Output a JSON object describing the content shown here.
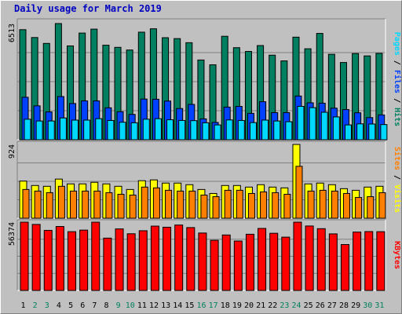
{
  "title": "Daily usage for March 2019",
  "colors": {
    "pages": "#00d8ff",
    "files": "#0040ff",
    "hits": "#008060",
    "visits": "#ffff00",
    "sites": "#ff8000",
    "kbytes": "#ff0000",
    "weekday": "#000000",
    "weekend": "#00805c"
  },
  "chart_data": [
    {
      "type": "bar",
      "name": "hits-files-pages",
      "max_label": "6513",
      "ylim": [
        0,
        6513
      ],
      "legend": [
        "Pages",
        "Files",
        "Hits"
      ],
      "categories": [
        "1",
        "2",
        "3",
        "4",
        "5",
        "6",
        "7",
        "8",
        "9",
        "10",
        "11",
        "12",
        "13",
        "14",
        "15",
        "16",
        "17",
        "18",
        "19",
        "20",
        "21",
        "22",
        "23",
        "24",
        "25",
        "26",
        "27",
        "28",
        "29",
        "30",
        "31"
      ],
      "series": [
        {
          "name": "Hits",
          "values": [
            6170,
            5730,
            5400,
            6513,
            5260,
            5980,
            6200,
            5300,
            5180,
            5030,
            6030,
            6220,
            5720,
            5670,
            5440,
            4470,
            4200,
            5800,
            5160,
            4950,
            5280,
            4740,
            4420,
            5750,
            5100,
            5960,
            4790,
            4330,
            4830,
            4700,
            4840
          ]
        },
        {
          "name": "Files",
          "values": [
            2380,
            1900,
            1560,
            2420,
            2030,
            2180,
            2180,
            1790,
            1570,
            1420,
            2280,
            2270,
            2170,
            1750,
            1980,
            1170,
            970,
            1830,
            1870,
            1480,
            2130,
            1520,
            1520,
            2450,
            2070,
            2050,
            1770,
            1690,
            1510,
            1240,
            1390
          ]
        },
        {
          "name": "Pages",
          "values": [
            1150,
            1050,
            1050,
            1220,
            1100,
            1100,
            1180,
            1080,
            980,
            950,
            1150,
            1180,
            1120,
            1080,
            1070,
            950,
            830,
            1110,
            1080,
            960,
            1100,
            1050,
            1010,
            1870,
            1800,
            1540,
            1280,
            830,
            890,
            880,
            850
          ]
        }
      ]
    },
    {
      "type": "bar",
      "name": "visits-sites",
      "max_label": "924",
      "ylim": [
        0,
        924
      ],
      "legend": [
        "Sites",
        "Visits"
      ],
      "categories": [
        "1",
        "2",
        "3",
        "4",
        "5",
        "6",
        "7",
        "8",
        "9",
        "10",
        "11",
        "12",
        "13",
        "14",
        "15",
        "16",
        "17",
        "18",
        "19",
        "20",
        "21",
        "22",
        "23",
        "24",
        "25",
        "26",
        "27",
        "28",
        "29",
        "30",
        "31"
      ],
      "series": [
        {
          "name": "Visits",
          "values": [
            465,
            410,
            400,
            490,
            430,
            430,
            450,
            430,
            400,
            360,
            470,
            480,
            440,
            440,
            420,
            360,
            310,
            410,
            410,
            390,
            420,
            390,
            380,
            924,
            430,
            440,
            420,
            370,
            350,
            390,
            400
          ]
        },
        {
          "name": "Sites",
          "values": [
            360,
            340,
            320,
            400,
            340,
            340,
            340,
            320,
            300,
            290,
            390,
            380,
            350,
            340,
            340,
            290,
            270,
            350,
            350,
            310,
            330,
            320,
            300,
            650,
            340,
            350,
            340,
            310,
            260,
            270,
            320
          ]
        }
      ]
    },
    {
      "type": "bar",
      "name": "kbytes",
      "max_label": "56374",
      "ylim": [
        0,
        56374
      ],
      "legend": [
        "KBytes"
      ],
      "categories": [
        "1",
        "2",
        "3",
        "4",
        "5",
        "6",
        "7",
        "8",
        "9",
        "10",
        "11",
        "12",
        "13",
        "14",
        "15",
        "16",
        "17",
        "18",
        "19",
        "20",
        "21",
        "22",
        "23",
        "24",
        "25",
        "26",
        "27",
        "28",
        "29",
        "30",
        "31"
      ],
      "series": [
        {
          "name": "KBytes",
          "values": [
            56374,
            54500,
            49600,
            52800,
            48500,
            49800,
            56374,
            43200,
            50800,
            46800,
            49300,
            53100,
            52200,
            54000,
            51900,
            47400,
            41400,
            45800,
            40800,
            46400,
            51200,
            47200,
            44000,
            56374,
            53200,
            51000,
            46700,
            37900,
            48200,
            48600,
            48500
          ]
        }
      ]
    }
  ],
  "x_axis": {
    "days": [
      "1",
      "2",
      "3",
      "4",
      "5",
      "6",
      "7",
      "8",
      "9",
      "10",
      "11",
      "12",
      "13",
      "14",
      "15",
      "16",
      "17",
      "18",
      "19",
      "20",
      "21",
      "22",
      "23",
      "24",
      "25",
      "26",
      "27",
      "28",
      "29",
      "30",
      "31"
    ],
    "weekend_days": [
      "2",
      "3",
      "9",
      "10",
      "16",
      "17",
      "23",
      "24",
      "30",
      "31"
    ]
  }
}
